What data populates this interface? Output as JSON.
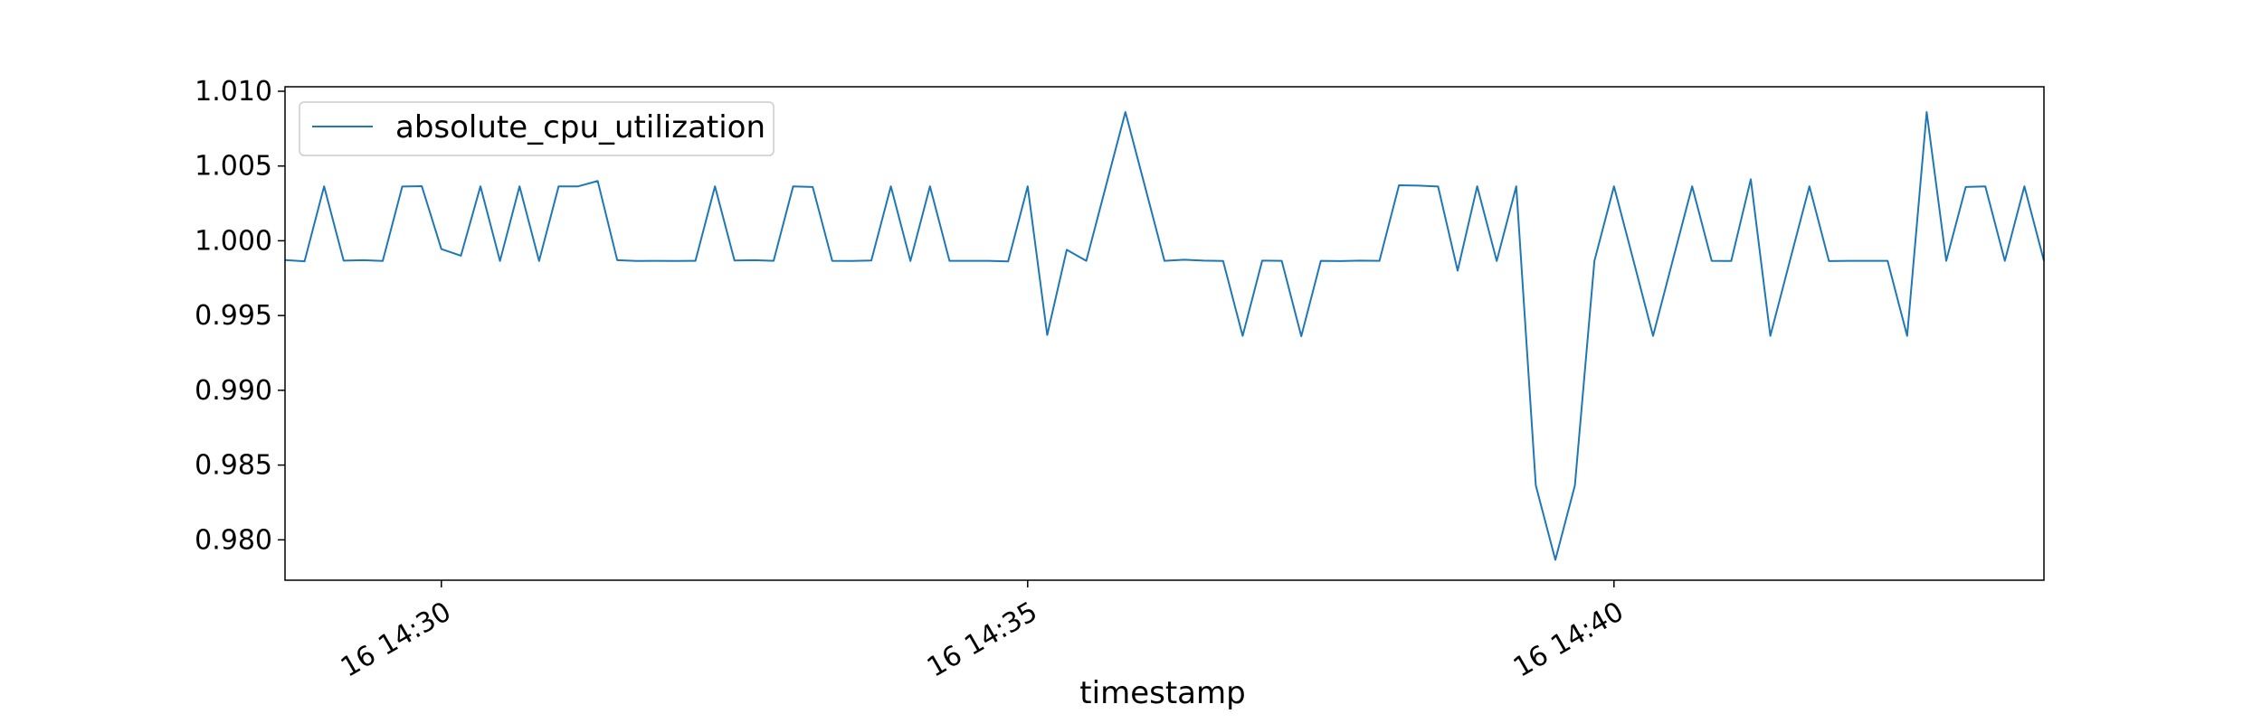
{
  "chart_data": {
    "type": "line",
    "title": "",
    "xlabel": "timestamp",
    "ylabel": "",
    "grid": false,
    "legend": {
      "placement": "upper-left"
    },
    "x_range": [
      "2016-06-16 14:28:40",
      "2016-06-16 14:43:40"
    ],
    "ylim": [
      0.9773,
      1.0103
    ],
    "x_ticks": [
      {
        "label": "16 14:30",
        "time": "2016-06-16 14:30:00"
      },
      {
        "label": "16 14:35",
        "time": "2016-06-16 14:35:00"
      },
      {
        "label": "16 14:40",
        "time": "2016-06-16 14:40:00"
      }
    ],
    "y_ticks": [
      {
        "label": "0.980",
        "value": 0.98
      },
      {
        "label": "0.985",
        "value": 0.985
      },
      {
        "label": "0.990",
        "value": 0.99
      },
      {
        "label": "0.995",
        "value": 0.995
      },
      {
        "label": "1.000",
        "value": 1.0
      },
      {
        "label": "1.005",
        "value": 1.005
      },
      {
        "label": "1.010",
        "value": 1.01
      }
    ],
    "series": [
      {
        "name": "absolute_cpu_utilization",
        "color": "#1f77b4",
        "x": [
          "2016-06-16 14:28:40",
          "2016-06-16 14:28:50",
          "2016-06-16 14:29:00",
          "2016-06-16 14:29:10",
          "2016-06-16 14:29:20",
          "2016-06-16 14:29:30",
          "2016-06-16 14:29:40",
          "2016-06-16 14:29:50",
          "2016-06-16 14:30:00",
          "2016-06-16 14:30:10",
          "2016-06-16 14:30:20",
          "2016-06-16 14:30:30",
          "2016-06-16 14:30:40",
          "2016-06-16 14:30:50",
          "2016-06-16 14:31:00",
          "2016-06-16 14:31:10",
          "2016-06-16 14:31:20",
          "2016-06-16 14:31:30",
          "2016-06-16 14:31:40",
          "2016-06-16 14:31:50",
          "2016-06-16 14:32:00",
          "2016-06-16 14:32:10",
          "2016-06-16 14:32:20",
          "2016-06-16 14:32:30",
          "2016-06-16 14:32:40",
          "2016-06-16 14:32:50",
          "2016-06-16 14:33:00",
          "2016-06-16 14:33:10",
          "2016-06-16 14:33:20",
          "2016-06-16 14:33:30",
          "2016-06-16 14:33:40",
          "2016-06-16 14:33:50",
          "2016-06-16 14:34:00",
          "2016-06-16 14:34:10",
          "2016-06-16 14:34:20",
          "2016-06-16 14:34:30",
          "2016-06-16 14:34:40",
          "2016-06-16 14:34:50",
          "2016-06-16 14:35:00",
          "2016-06-16 14:35:10",
          "2016-06-16 14:35:20",
          "2016-06-16 14:35:30",
          "2016-06-16 14:35:40",
          "2016-06-16 14:35:50",
          "2016-06-16 14:36:00",
          "2016-06-16 14:36:10",
          "2016-06-16 14:36:20",
          "2016-06-16 14:36:30",
          "2016-06-16 14:36:40",
          "2016-06-16 14:36:50",
          "2016-06-16 14:37:00",
          "2016-06-16 14:37:10",
          "2016-06-16 14:37:20",
          "2016-06-16 14:37:30",
          "2016-06-16 14:37:40",
          "2016-06-16 14:37:50",
          "2016-06-16 14:38:00",
          "2016-06-16 14:38:10",
          "2016-06-16 14:38:20",
          "2016-06-16 14:38:30",
          "2016-06-16 14:38:40",
          "2016-06-16 14:38:50",
          "2016-06-16 14:39:00",
          "2016-06-16 14:39:10",
          "2016-06-16 14:39:20",
          "2016-06-16 14:39:30",
          "2016-06-16 14:39:40",
          "2016-06-16 14:39:50",
          "2016-06-16 14:40:00",
          "2016-06-16 14:40:10",
          "2016-06-16 14:40:20",
          "2016-06-16 14:40:30",
          "2016-06-16 14:40:40",
          "2016-06-16 14:40:50",
          "2016-06-16 14:41:00",
          "2016-06-16 14:41:10",
          "2016-06-16 14:41:20",
          "2016-06-16 14:41:30",
          "2016-06-16 14:41:40",
          "2016-06-16 14:41:50",
          "2016-06-16 14:42:00",
          "2016-06-16 14:42:10",
          "2016-06-16 14:42:20",
          "2016-06-16 14:42:30",
          "2016-06-16 14:42:40",
          "2016-06-16 14:42:50",
          "2016-06-16 14:43:00",
          "2016-06-16 14:43:10",
          "2016-06-16 14:43:20",
          "2016-06-16 14:43:30",
          "2016-06-16 14:43:40"
        ],
        "values": [
          0.99871,
          0.99863,
          1.00364,
          0.99867,
          0.9987,
          0.99865,
          1.00363,
          1.00365,
          0.99945,
          0.999,
          1.00364,
          0.99865,
          1.00364,
          0.99865,
          1.00364,
          1.00364,
          1.004,
          0.9987,
          0.99865,
          0.99866,
          0.99865,
          0.99866,
          1.00364,
          0.99868,
          0.9987,
          0.99866,
          1.00364,
          1.0036,
          0.99866,
          0.99865,
          0.99868,
          1.00364,
          0.99865,
          1.00364,
          0.99866,
          0.99866,
          0.99866,
          0.99862,
          1.00364,
          0.9937,
          0.9994,
          0.99866,
          1.00364,
          1.00861,
          1.00364,
          0.99866,
          0.99873,
          0.99867,
          0.99865,
          0.99364,
          0.99867,
          0.99866,
          0.99362,
          0.99866,
          0.99864,
          0.99867,
          0.99866,
          1.00371,
          1.00369,
          1.00363,
          0.998,
          1.00364,
          0.99865,
          1.00364,
          0.98364,
          0.97866,
          0.98364,
          0.99866,
          1.00364,
          0.99866,
          0.99364,
          0.99866,
          1.00364,
          0.99866,
          0.99865,
          1.00411,
          0.99364,
          0.99866,
          1.00364,
          0.99864,
          0.99866,
          0.99866,
          0.99866,
          0.99364,
          1.00861,
          0.99866,
          1.0036,
          1.00364,
          0.99866,
          1.00364,
          0.99866
        ]
      }
    ]
  }
}
